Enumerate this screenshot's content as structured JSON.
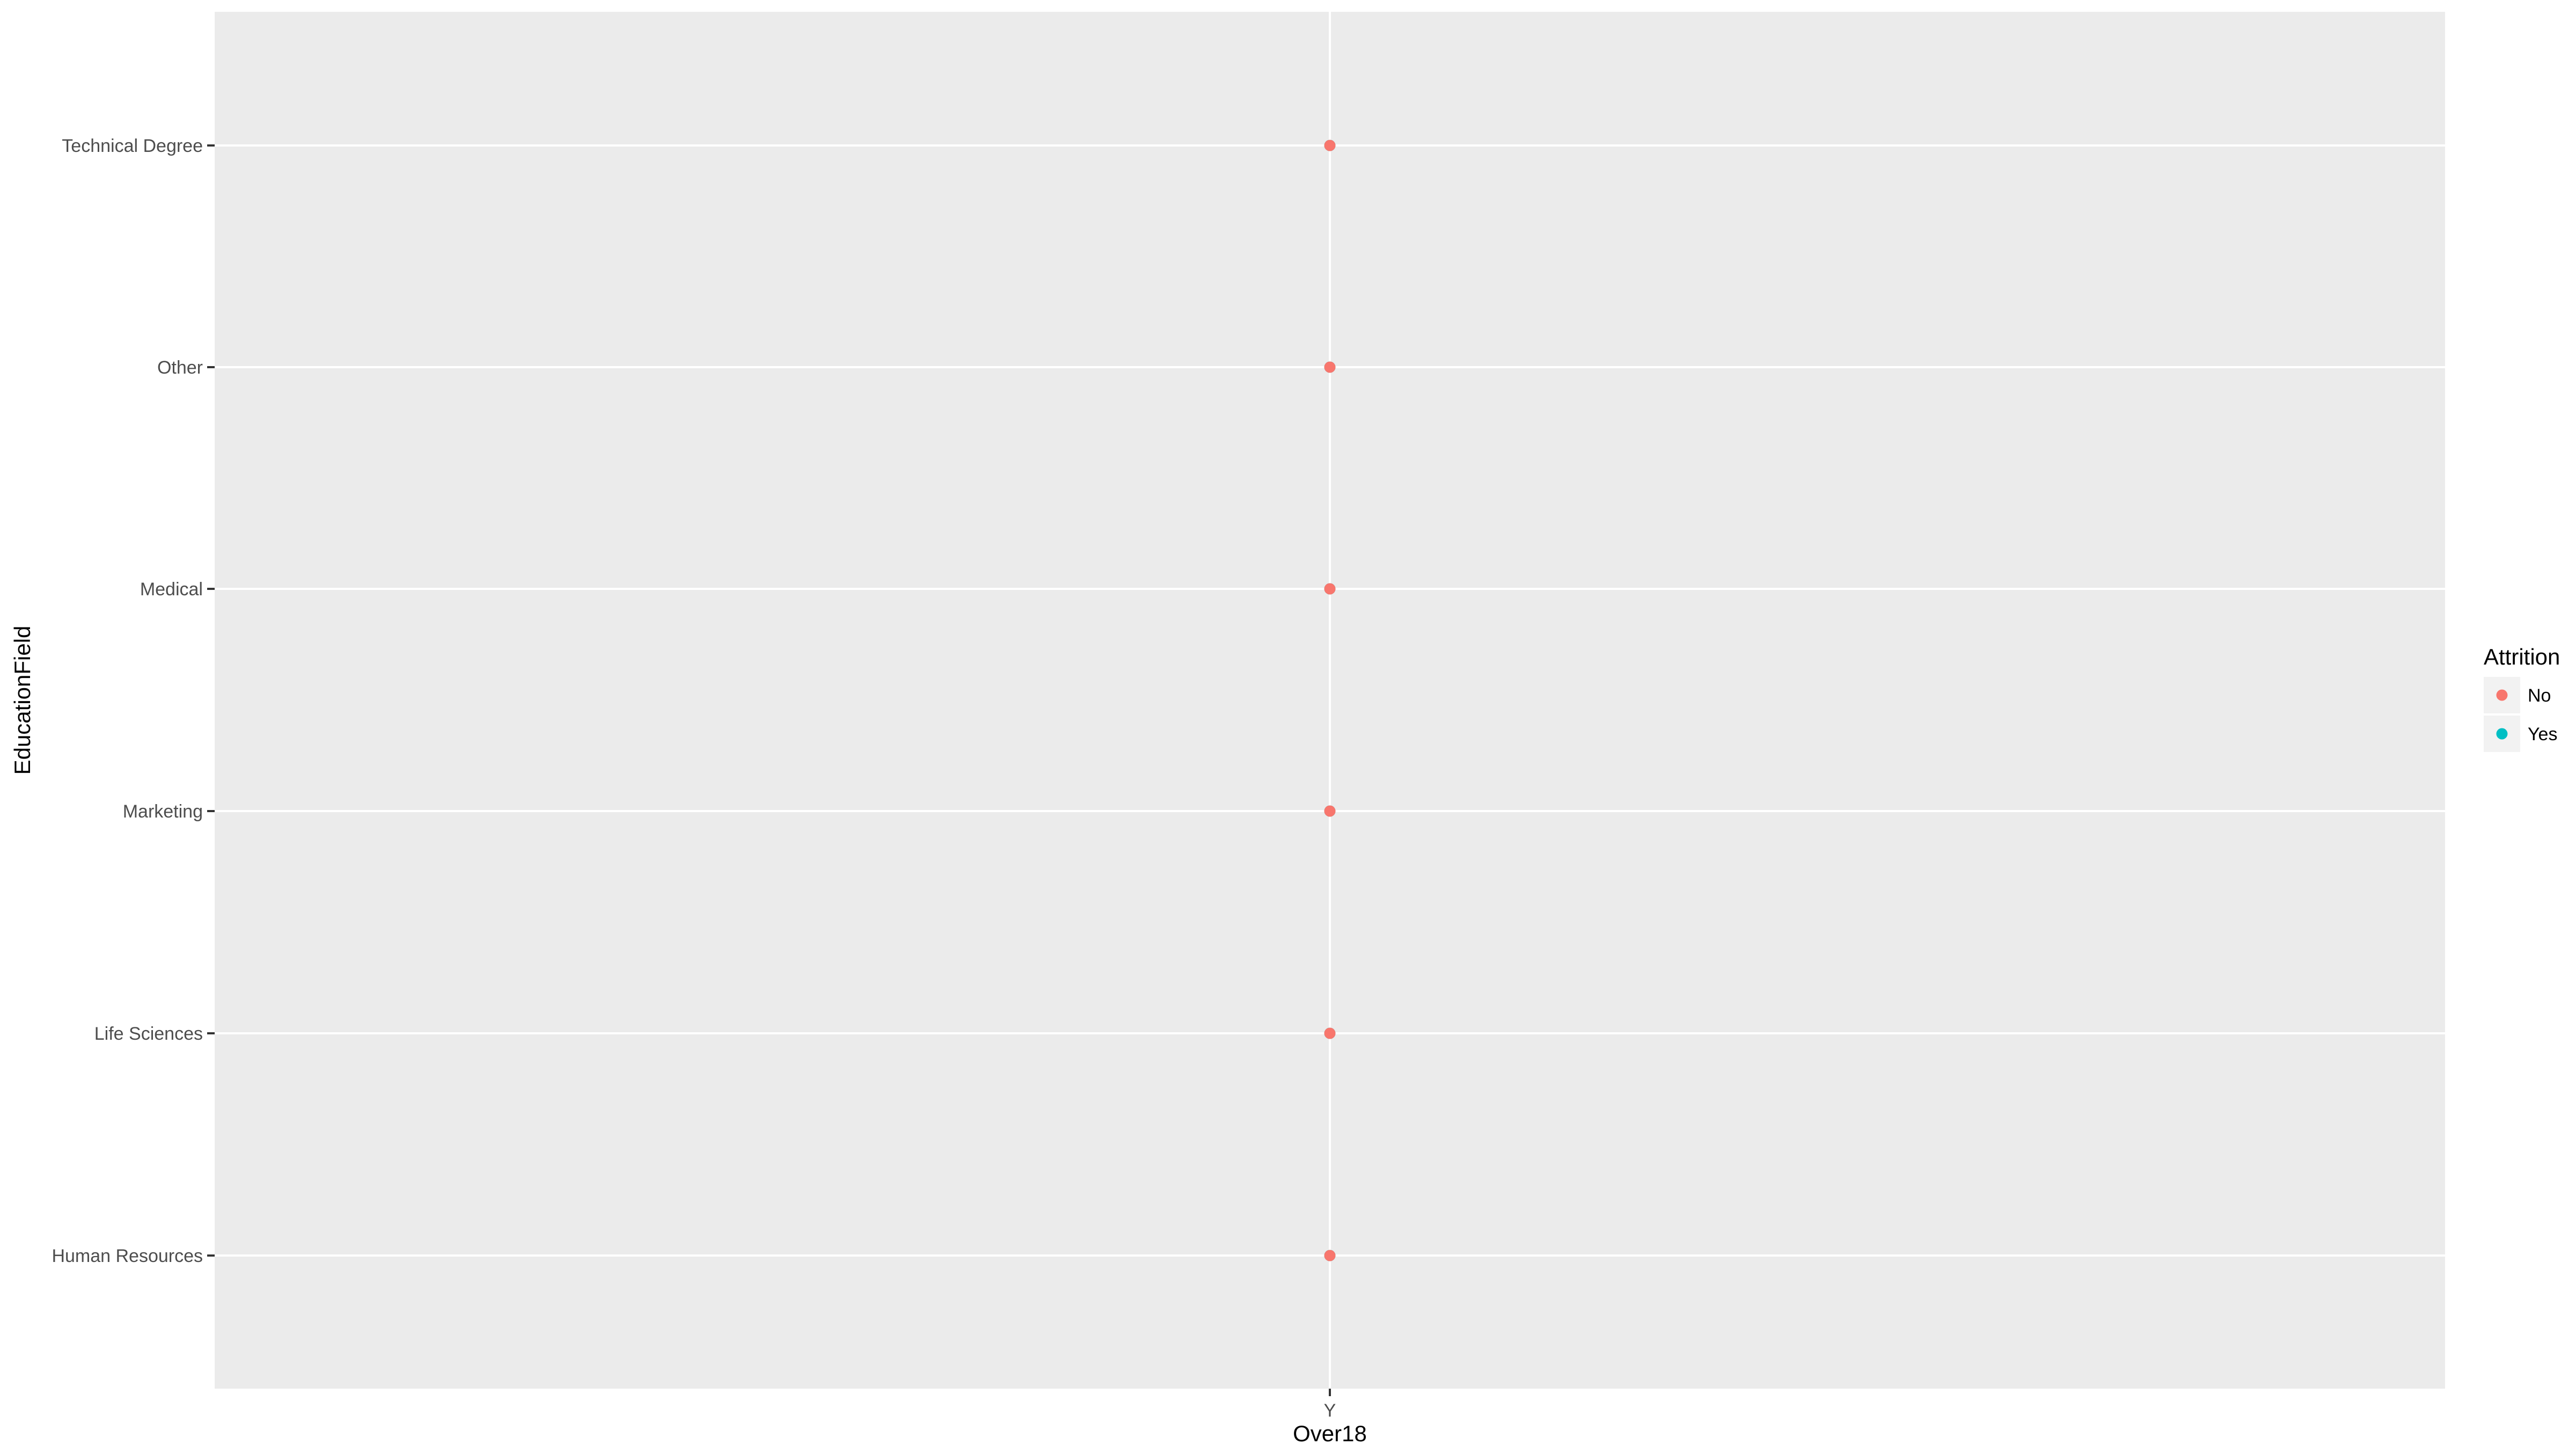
{
  "chart_data": {
    "type": "scatter",
    "xlabel": "Over18",
    "ylabel": "EducationField",
    "x_categories": [
      "Y"
    ],
    "y_categories": [
      "Human Resources",
      "Life Sciences",
      "Marketing",
      "Medical",
      "Other",
      "Technical Degree"
    ],
    "grid": true,
    "legend": {
      "title": "Attrition",
      "position": "right",
      "entries": [
        {
          "label": "No",
          "color": "#F8766D"
        },
        {
          "label": "Yes",
          "color": "#00BFC4"
        }
      ]
    },
    "series": [
      {
        "name": "No",
        "color": "#F8766D",
        "points": [
          {
            "x": "Y",
            "y": "Human Resources"
          },
          {
            "x": "Y",
            "y": "Life Sciences"
          },
          {
            "x": "Y",
            "y": "Marketing"
          },
          {
            "x": "Y",
            "y": "Medical"
          },
          {
            "x": "Y",
            "y": "Other"
          },
          {
            "x": "Y",
            "y": "Technical Degree"
          }
        ]
      },
      {
        "name": "Yes",
        "color": "#00BFC4",
        "points": [
          {
            "x": "Y",
            "y": "Human Resources"
          },
          {
            "x": "Y",
            "y": "Life Sciences"
          },
          {
            "x": "Y",
            "y": "Marketing"
          },
          {
            "x": "Y",
            "y": "Medical"
          },
          {
            "x": "Y",
            "y": "Other"
          },
          {
            "x": "Y",
            "y": "Technical Degree"
          }
        ]
      }
    ]
  },
  "theme": {
    "panel_background": "#EBEBEB",
    "grid_color": "#FFFFFF",
    "tick_label_color": "#4D4D4D",
    "axis_title_color": "#000000"
  }
}
